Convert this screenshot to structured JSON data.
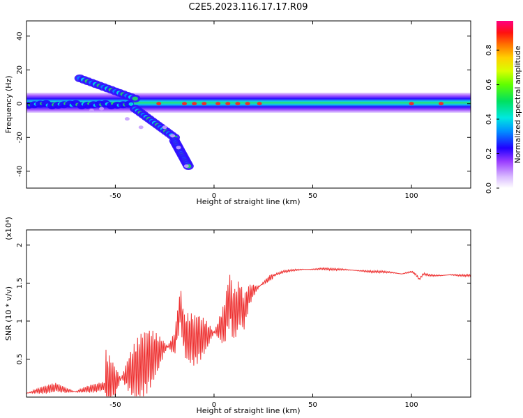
{
  "figure_title": "C2E5.2023.116.17.17.R09",
  "chart_data": [
    {
      "type": "heatmap",
      "xlabel": "Height of straight line (km)",
      "ylabel": "Frequency (Hz)",
      "xlim": [
        -95,
        130
      ],
      "ylim": [
        -50,
        49
      ],
      "xticks": [
        -50,
        0,
        50,
        100
      ],
      "yticks": [
        -40,
        -20,
        0,
        20,
        40
      ],
      "colorbar": {
        "label": "Normalized spectral amplitude",
        "range": [
          0,
          0.97
        ],
        "ticks": [
          0.0,
          0.2,
          0.4,
          0.6,
          0.8
        ]
      },
      "features": [
        {
          "name": "main band",
          "x": [
            -95,
            130
          ],
          "freq_center": 0,
          "half_width_hz": 5
        },
        {
          "name": "upper branch",
          "x": [
            -68,
            -40
          ],
          "freq": [
            15,
            3
          ]
        },
        {
          "name": "lower branch",
          "x": [
            -40,
            -20
          ],
          "freq": [
            -3,
            -20
          ]
        },
        {
          "name": "tail",
          "x": [
            -20,
            -13
          ],
          "freq": [
            -22,
            -37
          ]
        }
      ],
      "grid": false
    },
    {
      "type": "line",
      "xlabel": "Height of straight line (km)",
      "ylabel": "SNR (10 * v/v)",
      "y_multiplier": "(x10⁴)",
      "xlim": [
        -95,
        130
      ],
      "ylim": [
        0,
        2.2
      ],
      "xticks": [
        -50,
        0,
        50,
        100
      ],
      "yticks": [
        0.5,
        1.0,
        1.5,
        2.0
      ],
      "color": "#ee3030",
      "grid": false,
      "series": [
        {
          "x": [
            -95,
            -90,
            -85,
            -80,
            -75,
            -70,
            -65,
            -60,
            -55,
            -50,
            -45,
            -40,
            -35,
            -30,
            -25,
            -20,
            -17,
            -15,
            -10,
            -5,
            0,
            5,
            8,
            10,
            13,
            15,
            18,
            20,
            25,
            30,
            35,
            40,
            45,
            50,
            55,
            60,
            65,
            70,
            75,
            80,
            85,
            90,
            95,
            100,
            102,
            104,
            106,
            110,
            115,
            120,
            125,
            130
          ],
          "y": [
            0.05,
            0.08,
            0.1,
            0.13,
            0.09,
            0.07,
            0.1,
            0.12,
            0.15,
            0.2,
            0.28,
            0.35,
            0.45,
            0.55,
            0.65,
            0.7,
            1.2,
            0.8,
            0.75,
            0.8,
            0.85,
            0.95,
            1.3,
            1.05,
            1.25,
            1.1,
            1.35,
            1.4,
            1.5,
            1.6,
            1.65,
            1.67,
            1.68,
            1.68,
            1.69,
            1.68,
            1.68,
            1.67,
            1.66,
            1.65,
            1.65,
            1.64,
            1.62,
            1.65,
            1.62,
            1.55,
            1.62,
            1.6,
            1.6,
            1.61,
            1.6,
            1.6
          ]
        }
      ]
    }
  ]
}
